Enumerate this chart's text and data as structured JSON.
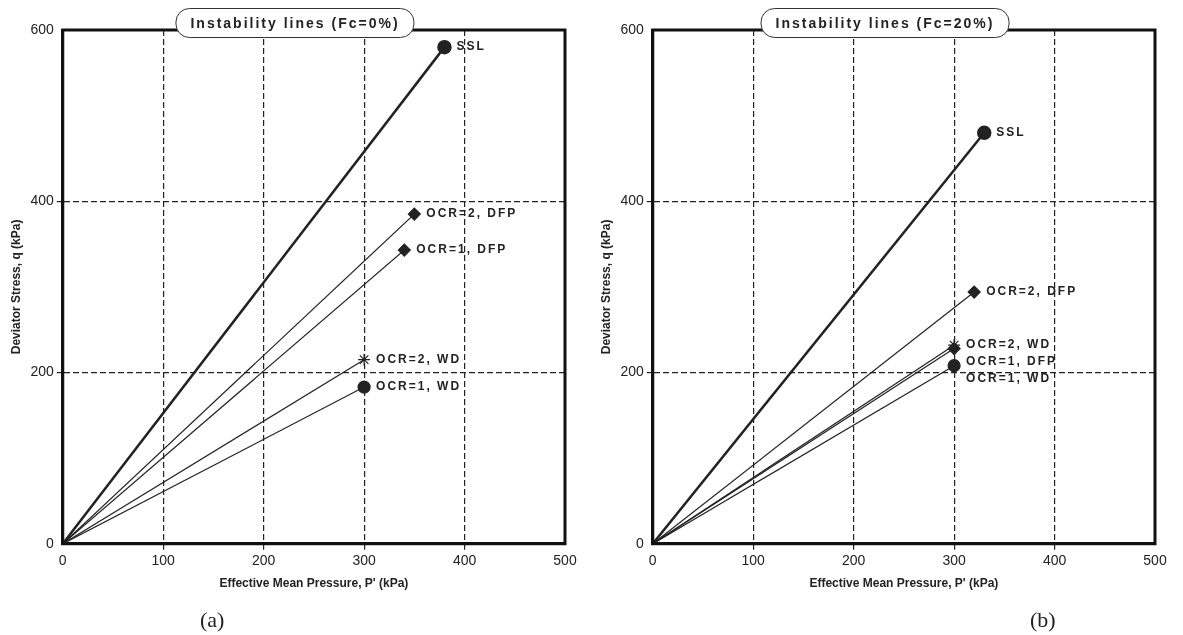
{
  "chart_data": [
    {
      "type": "line",
      "title": "Instability lines (Fc=0%)",
      "xlabel": "Effective Mean Pressure, P' (kPa)",
      "ylabel": "Deviator Stress, q (kPa)",
      "xlim": [
        0,
        500
      ],
      "xticks": [
        0,
        100,
        200,
        300,
        400,
        500
      ],
      "ylim": [
        0,
        600
      ],
      "yticks": [
        0,
        200,
        400,
        600
      ],
      "grid": true,
      "legend": false,
      "annotations": [
        "(a)"
      ],
      "series": [
        {
          "name": "SSL",
          "color": "#222222",
          "x": [
            0,
            380
          ],
          "values": [
            0,
            580
          ],
          "marker": "circle"
        },
        {
          "name": "OCR=2, DFP",
          "color": "#222222",
          "x": [
            0,
            350
          ],
          "values": [
            0,
            385
          ],
          "marker": "diamond"
        },
        {
          "name": "OCR=1, DFP",
          "color": "#222222",
          "x": [
            0,
            340
          ],
          "values": [
            0,
            343
          ],
          "marker": "diamond"
        },
        {
          "name": "OCR=2, WD",
          "color": "#222222",
          "x": [
            0,
            300
          ],
          "values": [
            0,
            215
          ],
          "marker": "cross"
        },
        {
          "name": "OCR=1, WD",
          "color": "#222222",
          "x": [
            0,
            300
          ],
          "values": [
            0,
            183
          ],
          "marker": "circle"
        }
      ]
    },
    {
      "type": "line",
      "title": "Instability lines (Fc=20%)",
      "xlabel": "Effective Mean Pressure, P' (kPa)",
      "ylabel": "Deviator Stress, q (kPa)",
      "xlim": [
        0,
        500
      ],
      "xticks": [
        0,
        100,
        200,
        300,
        400,
        500
      ],
      "ylim": [
        0,
        600
      ],
      "yticks": [
        0,
        200,
        400,
        600
      ],
      "grid": true,
      "legend": false,
      "annotations": [
        "(b)"
      ],
      "series": [
        {
          "name": "SSL",
          "color": "#222222",
          "x": [
            0,
            330
          ],
          "values": [
            0,
            480
          ],
          "marker": "circle"
        },
        {
          "name": "OCR=2, DFP",
          "color": "#222222",
          "x": [
            0,
            320
          ],
          "values": [
            0,
            294
          ],
          "marker": "diamond"
        },
        {
          "name": "OCR=2, WD",
          "color": "#222222",
          "x": [
            0,
            300
          ],
          "values": [
            0,
            232
          ],
          "marker": "cross"
        },
        {
          "name": "OCR=1, DFP",
          "color": "#222222",
          "x": [
            0,
            300
          ],
          "values": [
            0,
            228
          ],
          "marker": "diamond"
        },
        {
          "name": "OCR=1, WD",
          "color": "#222222",
          "x": [
            0,
            300
          ],
          "values": [
            0,
            208
          ],
          "marker": "circle"
        }
      ]
    }
  ]
}
